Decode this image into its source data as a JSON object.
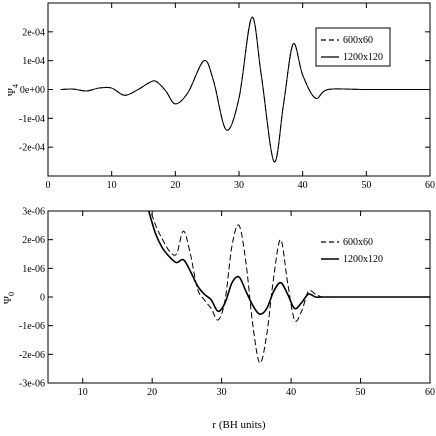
{
  "figure": {
    "xlabel": "r (BH units)"
  },
  "colors": {
    "line": "#000000",
    "background": "#ffffff"
  },
  "chart_data": [
    {
      "type": "line",
      "panel": "top",
      "xlabel": "",
      "ylabel": "Ψ4",
      "ylabel_main": "Ψ",
      "ylabel_sub": "4",
      "xlim": [
        0,
        60
      ],
      "ylim": [
        -0.0003,
        0.0003
      ],
      "x_ticks": [
        0,
        10,
        20,
        30,
        40,
        50,
        60
      ],
      "x_tick_labels": [
        "0",
        "10",
        "20",
        "30",
        "40",
        "50",
        "60"
      ],
      "y_ticks": [
        0.0002,
        0.0001,
        0,
        -0.0001,
        -0.0002
      ],
      "y_tick_labels": [
        "2e-04",
        "1e-04",
        "0e+00",
        "-1e-04",
        "-2e-04"
      ],
      "grid": false,
      "legend_position": "top-right",
      "series": [
        {
          "name": "600x60",
          "dash": "dashed",
          "x": [
            2,
            4,
            6,
            8,
            10,
            12,
            14,
            16,
            17,
            18.5,
            20,
            22,
            24.5,
            26,
            28,
            30,
            32,
            33.5,
            35.5,
            37,
            38.5,
            40,
            42,
            44,
            50,
            60
          ],
          "y": [
            0,
            1.5e-06,
            -5e-06,
            5e-06,
            5e-06,
            -2e-05,
            -2e-06,
            2.5e-05,
            2.8e-05,
            -5e-06,
            -5e-05,
            -1e-05,
            0.0001,
            3e-05,
            -0.00014,
            -3e-05,
            0.00025,
            5e-05,
            -0.00025,
            -5e-05,
            0.000158,
            5e-05,
            -3e-05,
            0,
            0,
            0
          ]
        },
        {
          "name": "1200x120",
          "dash": "solid",
          "x": [
            2,
            4,
            6,
            8,
            10,
            12,
            14,
            16,
            17,
            18.5,
            20,
            22,
            24.5,
            26,
            28,
            30,
            32,
            33.5,
            35.5,
            37,
            38.5,
            40,
            42,
            44,
            50,
            60
          ],
          "y": [
            0,
            1.5e-06,
            -5e-06,
            5e-06,
            5e-06,
            -2e-05,
            -2e-06,
            2.5e-05,
            2.8e-05,
            -5e-06,
            -5e-05,
            -1e-05,
            0.0001,
            3e-05,
            -0.00014,
            -3e-05,
            0.00025,
            5e-05,
            -0.00025,
            -5e-05,
            0.000158,
            5e-05,
            -3e-05,
            0,
            0,
            0
          ]
        }
      ]
    },
    {
      "type": "line",
      "panel": "bottom",
      "xlabel": "r (BH units)",
      "ylabel": "Ψ0",
      "ylabel_main": "Ψ",
      "ylabel_sub": "0",
      "xlim": [
        5,
        60
      ],
      "ylim": [
        -3e-06,
        3e-06
      ],
      "x_ticks": [
        10,
        20,
        30,
        40,
        50,
        60
      ],
      "x_tick_labels": [
        "10",
        "20",
        "30",
        "40",
        "50",
        "60"
      ],
      "y_ticks": [
        3e-06,
        2e-06,
        1e-06,
        0,
        -1e-06,
        -2e-06,
        -3e-06
      ],
      "y_tick_labels": [
        "3e-06",
        "2e-06",
        "1e-06",
        "0",
        "-1e-06",
        "-2e-06",
        "-3e-06"
      ],
      "grid": false,
      "legend_position": "top-right",
      "series": [
        {
          "name": "600x60",
          "dash": "dashed",
          "x": [
            19.5,
            20.5,
            21.5,
            22.5,
            23.5,
            24.5,
            25.5,
            26.5,
            27.5,
            28.5,
            29.5,
            30.5,
            31.5,
            32.5,
            33.5,
            34.5,
            35.5,
            36.5,
            37.5,
            38.5,
            39.5,
            40.5,
            41.5,
            42.5,
            43.5,
            44.5,
            46,
            50,
            60
          ],
          "y": [
            3.2e-06,
            2.5e-06,
            2e-06,
            1.6e-06,
            1.5e-06,
            2.3e-06,
            1.5e-06,
            3e-07,
            -1e-07,
            -4e-07,
            -8e-07,
            -1e-07,
            1.8e-06,
            2.5e-06,
            1.2e-06,
            -1e-06,
            -2.3e-06,
            -1.3e-06,
            7e-07,
            2e-06,
            5e-07,
            -8e-07,
            -5e-07,
            2e-07,
            1e-07,
            0,
            0,
            0,
            0
          ]
        },
        {
          "name": "1200x120",
          "dash": "solid",
          "x": [
            19.5,
            20.5,
            21.5,
            22.5,
            23.5,
            24.5,
            25.5,
            26.5,
            27.5,
            28.5,
            29.5,
            30.5,
            31.5,
            32.5,
            33.5,
            34.5,
            35.5,
            36.5,
            37.5,
            38.5,
            39.5,
            40.5,
            41.5,
            42.5,
            43.5,
            44.5,
            46,
            50,
            60
          ],
          "y": [
            3e-06,
            2.2e-06,
            1.7e-06,
            1.4e-06,
            1.2e-06,
            1.3e-06,
            9e-07,
            4e-07,
            1e-07,
            -1e-07,
            -5e-07,
            -2e-07,
            5e-07,
            7e-07,
            2e-07,
            -3e-07,
            -6e-07,
            -4e-07,
            2e-07,
            5e-07,
            1e-07,
            -4e-07,
            -2e-07,
            1e-07,
            0,
            0,
            0,
            0,
            0
          ]
        }
      ]
    }
  ]
}
